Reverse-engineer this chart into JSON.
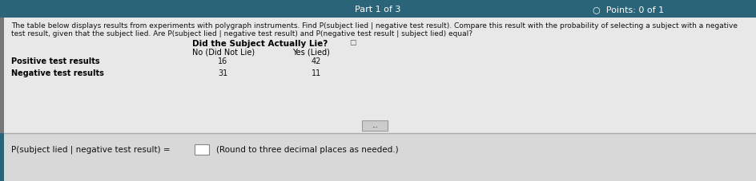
{
  "header_text": "Part 1 of 3",
  "points_text": "Points: 0 of 1",
  "top_bar_color": "#2a6478",
  "content_bg": "#e8e8e8",
  "bottom_bg": "#d8d8d8",
  "divider_color": "#aaaaaa",
  "text_color": "#111111",
  "header_text_color": "#ffffff",
  "bold_color": "#000000",
  "paragraph_line1": "The table below displays results from experiments with polygraph instruments. Find P(subject lied | negative test result). Compare this result with the probability of selecting a subject with a negative",
  "paragraph_line2": "test result, given that the subject lied. Are P(subject lied | negative test result) and P(negative test result | subject lied) equal?",
  "table_header_main": "Did the Subject Actually Lie?",
  "table_col1": "No (Did Not Lie)",
  "table_col2": "Yes (Lied)",
  "row1_label": "Positive test results",
  "row1_val1": "16",
  "row1_val2": "42",
  "row2_label": "Negative test results",
  "row2_val1": "31",
  "row2_val2": "11",
  "bottom_text": "P(subject lied | negative test result) =",
  "bottom_suffix": "(Round to three decimal places as needed.)",
  "left_bar_color": "#777777"
}
